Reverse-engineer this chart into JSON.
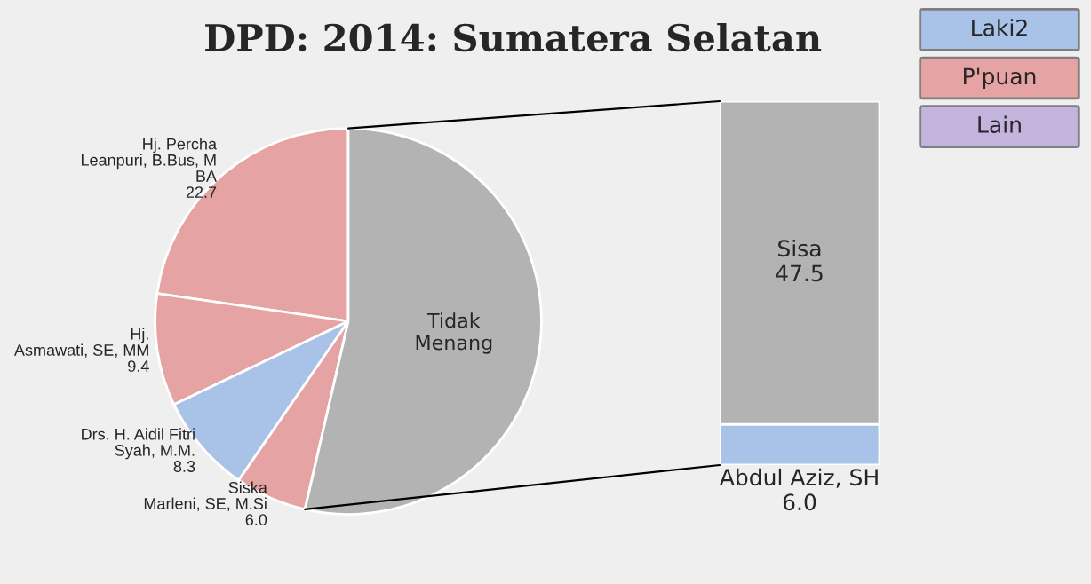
{
  "chart_data": [
    {
      "type": "pie",
      "title": "DPD: 2014: Sumatera Selatan",
      "categories": [
        "Hj. Percha\nLeanpuri, B.Bus, M\nBA",
        "Hj.\nAsmawati, SE, MM",
        "Drs. H. Aidil Fitri\nSyah, M.M.",
        "Siska\nMarleni, SE, M.Si",
        "Tidak\nMenang"
      ],
      "values": [
        22.7,
        9.4,
        8.3,
        6.0,
        53.6
      ],
      "value_labels": [
        "22.7",
        "9.4",
        "8.3",
        "6.0",
        null
      ],
      "colors": [
        "#e6a3a3",
        "#e6a3a3",
        "#a9c3e8",
        "#e6a3a3",
        "#b3b3b3"
      ]
    },
    {
      "type": "bar",
      "stacked": true,
      "categories": [
        null
      ],
      "series": [
        {
          "name": "Abdul Aziz, SH",
          "color": "#a9c3e8",
          "values": [
            6.0
          ],
          "value_labels": [
            "6.0"
          ]
        },
        {
          "name": "Sisa",
          "color": "#b3b3b3",
          "values": [
            47.5
          ],
          "value_labels": [
            "47.5"
          ]
        }
      ]
    },
    {
      "type": "other",
      "categories": [
        "Laki2",
        "P'puan",
        "Lain"
      ],
      "colors": [
        "#a9c3e8",
        "#e6a3a3",
        "#c3b3dd"
      ]
    }
  ]
}
